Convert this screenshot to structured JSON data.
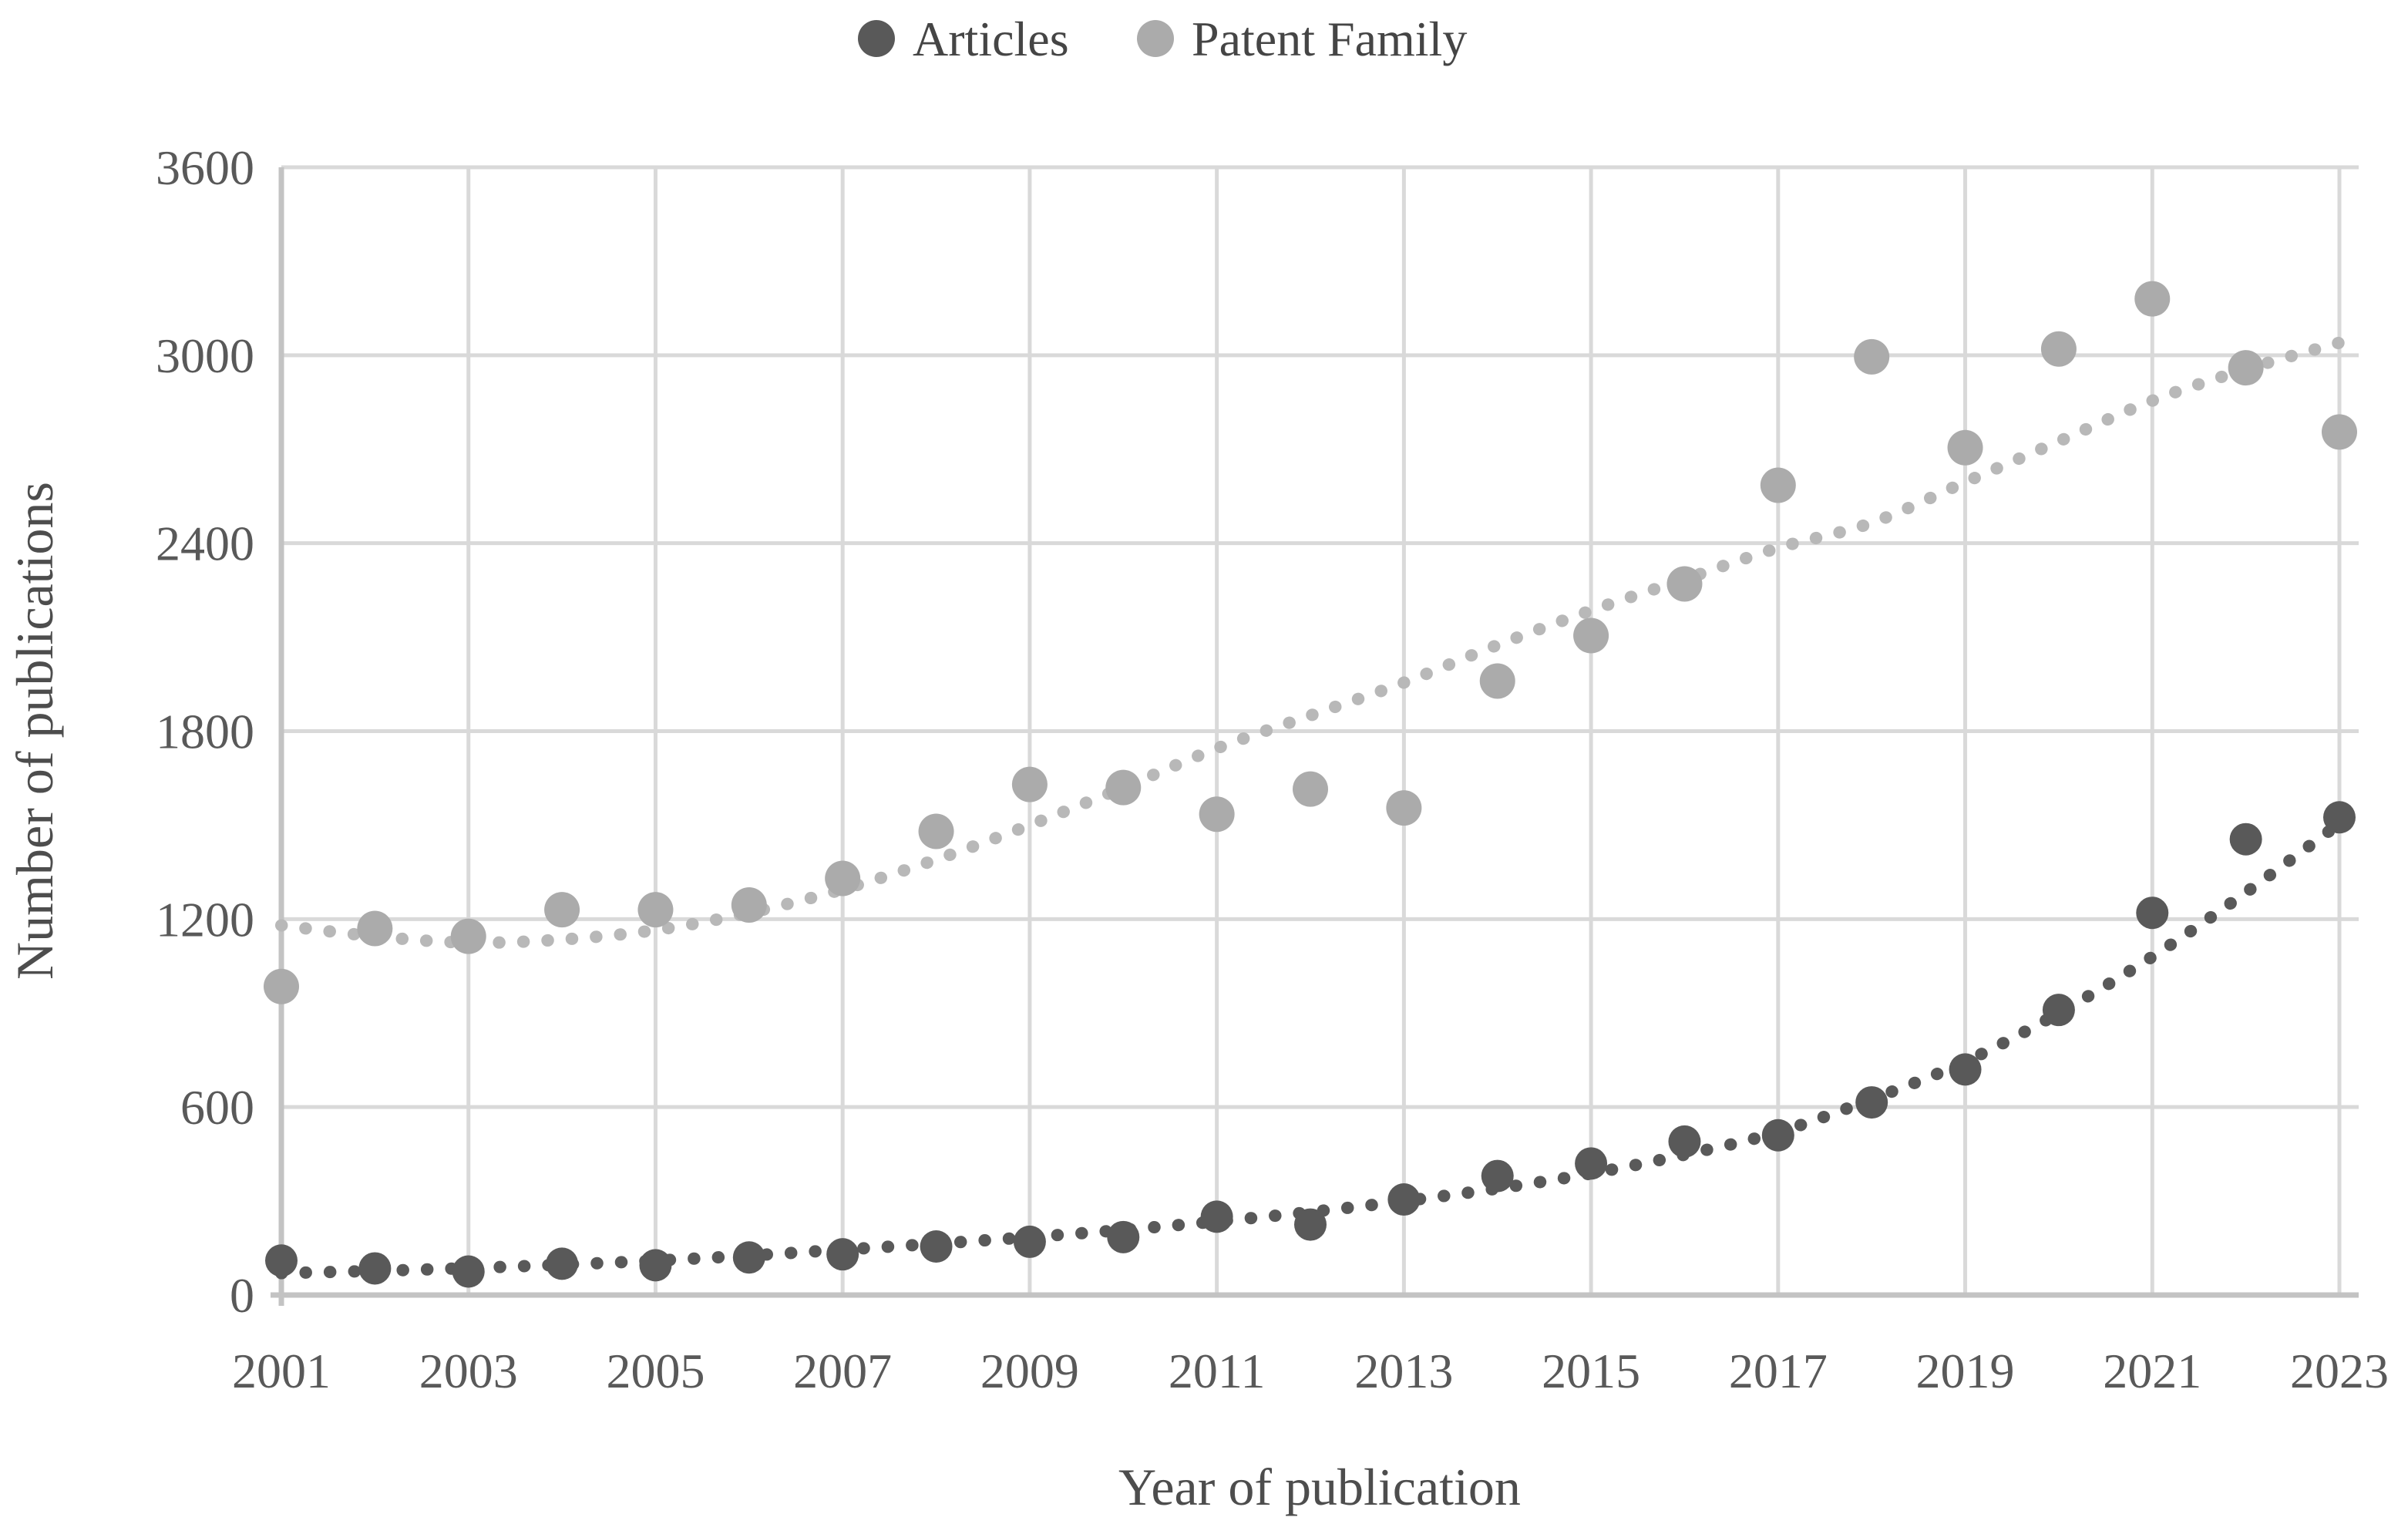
{
  "chart_data": {
    "type": "scatter",
    "title": "",
    "xlabel": "Year of publication",
    "ylabel": "Number of publications",
    "x": [
      2001,
      2002,
      2003,
      2004,
      2005,
      2006,
      2007,
      2008,
      2009,
      2010,
      2011,
      2012,
      2013,
      2014,
      2015,
      2016,
      2017,
      2018,
      2019,
      2020,
      2021,
      2022,
      2023
    ],
    "x_tick_labels": [
      "2001",
      "2003",
      "2005",
      "2007",
      "2009",
      "2011",
      "2013",
      "2015",
      "2017",
      "2019",
      "2021",
      "2023"
    ],
    "y_ticks": [
      0,
      600,
      1200,
      1800,
      2400,
      3000,
      3600
    ],
    "ylim": [
      0,
      3600
    ],
    "grid": true,
    "legend_position": "top-center",
    "series": [
      {
        "name": "Articles",
        "color": "#595959",
        "values": [
          110,
          85,
          75,
          100,
          95,
          120,
          130,
          155,
          170,
          185,
          250,
          225,
          305,
          380,
          420,
          490,
          510,
          615,
          720,
          910,
          1220,
          1455,
          1525
        ],
        "trendline": {
          "style": "dotted",
          "color": "#595959",
          "values": [
            70,
            77,
            86,
            97,
            110,
            126,
            145,
            164,
            185,
            208,
            235,
            265,
            300,
            340,
            388,
            448,
            520,
            625,
            745,
            900,
            1080,
            1285,
            1505
          ]
        }
      },
      {
        "name": "Patent Family",
        "color": "#ababab",
        "values": [
          985,
          1170,
          1145,
          1230,
          1230,
          1245,
          1330,
          1480,
          1630,
          1620,
          1535,
          1615,
          1555,
          1960,
          2105,
          2270,
          2585,
          2995,
          2705,
          3020,
          3180,
          2960,
          2755
        ],
        "trendline": {
          "style": "dotted",
          "color": "#b8b8b8",
          "values": [
            1180,
            1145,
            1125,
            1135,
            1165,
            1220,
            1295,
            1390,
            1500,
            1620,
            1745,
            1850,
            1955,
            2075,
            2185,
            2285,
            2385,
            2465,
            2595,
            2725,
            2855,
            2955,
            3040
          ]
        }
      }
    ]
  },
  "colors": {
    "background": "#ffffff",
    "gridline": "#d9d9d9",
    "axis_line": "#c3c3c3",
    "tick_text": "#595959",
    "title_text": "#4d4d4d"
  }
}
